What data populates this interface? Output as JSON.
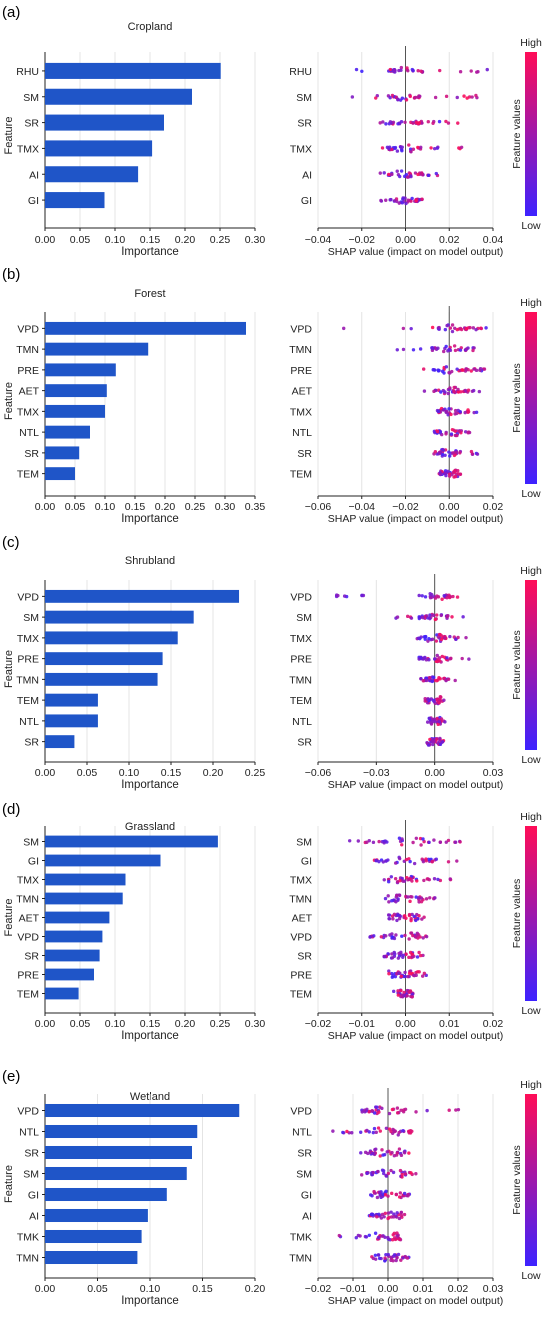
{
  "legend": {
    "high": "High",
    "low": "Low",
    "label": "Feature values"
  },
  "colors": {
    "bar": "#1f55c8",
    "high": "#ff0d57",
    "low": "#3d22ff",
    "grid": "#e4e4e4",
    "axis": "#222222"
  },
  "panels": [
    {
      "letter": "(a)",
      "title": "Cropland",
      "importance": {
        "type": "bar",
        "orientation": "horizontal",
        "ylabel": "Feature",
        "xlabel": "Importance",
        "categories": [
          "RHU",
          "SM",
          "SR",
          "TMX",
          "AI",
          "GI"
        ],
        "values": [
          0.251,
          0.21,
          0.17,
          0.153,
          0.133,
          0.085
        ],
        "xlim": [
          0,
          0.3
        ],
        "xticks": [
          "0.00",
          "0.05",
          "0.10",
          "0.15",
          "0.20",
          "0.25",
          "0.30"
        ]
      },
      "shap": {
        "type": "scatter",
        "xlabel": "SHAP value (impact on model output)",
        "features": [
          "RHU",
          "SM",
          "SR",
          "TMX",
          "AI",
          "GI"
        ],
        "xlim": [
          -0.04,
          0.04
        ],
        "xticks": [
          "−0.04",
          "−0.02",
          "0.00",
          "0.02",
          "0.04"
        ],
        "ranges": [
          [
            -0.028,
            0.039
          ],
          [
            -0.025,
            0.035
          ],
          [
            -0.012,
            0.028
          ],
          [
            -0.012,
            0.027
          ],
          [
            -0.012,
            0.015
          ],
          [
            -0.012,
            0.01
          ]
        ]
      }
    },
    {
      "letter": "(b)",
      "title": "Forest",
      "importance": {
        "type": "bar",
        "orientation": "horizontal",
        "ylabel": "Feature",
        "xlabel": "Importance",
        "categories": [
          "VPD",
          "TMN",
          "PRE",
          "AET",
          "TMX",
          "NTL",
          "SR",
          "TEM"
        ],
        "values": [
          0.335,
          0.172,
          0.118,
          0.103,
          0.1,
          0.075,
          0.057,
          0.05
        ],
        "xlim": [
          0,
          0.35
        ],
        "xticks": [
          "0.00",
          "0.05",
          "0.10",
          "0.15",
          "0.20",
          "0.25",
          "0.30",
          "0.35"
        ]
      },
      "shap": {
        "type": "scatter",
        "xlabel": "SHAP value (impact on model output)",
        "features": [
          "VPD",
          "TMN",
          "PRE",
          "AET",
          "TMX",
          "NTL",
          "SR",
          "TEM"
        ],
        "xlim": [
          -0.06,
          0.02
        ],
        "xticks": [
          "−0.06",
          "−0.04",
          "−0.02",
          "0.00",
          "0.02"
        ],
        "ranges": [
          [
            -0.057,
            0.018
          ],
          [
            -0.025,
            0.012
          ],
          [
            -0.012,
            0.017
          ],
          [
            -0.012,
            0.014
          ],
          [
            -0.007,
            0.014
          ],
          [
            -0.007,
            0.01
          ],
          [
            -0.007,
            0.014
          ],
          [
            -0.005,
            0.006
          ]
        ]
      }
    },
    {
      "letter": "(c)",
      "title": "Shrubland",
      "importance": {
        "type": "bar",
        "orientation": "horizontal",
        "ylabel": "Feature",
        "xlabel": "Importance",
        "categories": [
          "VPD",
          "SM",
          "TMX",
          "PRE",
          "TMN",
          "TEM",
          "NTL",
          "SR"
        ],
        "values": [
          0.231,
          0.177,
          0.158,
          0.14,
          0.134,
          0.063,
          0.063,
          0.035
        ],
        "xlim": [
          0,
          0.25
        ],
        "xticks": [
          "0.00",
          "0.05",
          "0.10",
          "0.15",
          "0.20",
          "0.25"
        ]
      },
      "shap": {
        "type": "scatter",
        "xlabel": "SHAP value (impact on model output)",
        "features": [
          "VPD",
          "SM",
          "TMX",
          "PRE",
          "TMN",
          "TEM",
          "NTL",
          "SR"
        ],
        "xlim": [
          -0.06,
          0.03
        ],
        "xticks": [
          "−0.06",
          "−0.03",
          "0.00",
          "0.03"
        ],
        "ranges": [
          [
            -0.053,
            0.012
          ],
          [
            -0.02,
            0.018
          ],
          [
            -0.01,
            0.018
          ],
          [
            -0.008,
            0.019
          ],
          [
            -0.008,
            0.012
          ],
          [
            -0.005,
            0.005
          ],
          [
            -0.004,
            0.007
          ],
          [
            -0.004,
            0.006
          ]
        ]
      }
    },
    {
      "letter": "(d)",
      "title": "Grassland",
      "importance": {
        "type": "bar",
        "orientation": "horizontal",
        "ylabel": "Feature",
        "xlabel": "Importance",
        "categories": [
          "SM",
          "GI",
          "TMX",
          "TMN",
          "AET",
          "VPD",
          "SR",
          "PRE",
          "TEM"
        ],
        "values": [
          0.247,
          0.165,
          0.115,
          0.111,
          0.092,
          0.082,
          0.078,
          0.07,
          0.048
        ],
        "xlim": [
          0,
          0.3
        ],
        "xticks": [
          "0.00",
          "0.05",
          "0.10",
          "0.15",
          "0.20",
          "0.25",
          "0.30"
        ]
      },
      "shap": {
        "type": "scatter",
        "xlabel": "SHAP value (impact on model output)",
        "features": [
          "SM",
          "GI",
          "TMX",
          "TMN",
          "AET",
          "VPD",
          "SR",
          "PRE",
          "TEM"
        ],
        "xlim": [
          -0.02,
          0.02
        ],
        "xticks": [
          "−0.02",
          "−0.01",
          "0.00",
          "0.01",
          "0.02"
        ],
        "ranges": [
          [
            -0.013,
            0.013
          ],
          [
            -0.009,
            0.012
          ],
          [
            -0.005,
            0.011
          ],
          [
            -0.005,
            0.007
          ],
          [
            -0.004,
            0.005
          ],
          [
            -0.009,
            0.005
          ],
          [
            -0.005,
            0.004
          ],
          [
            -0.004,
            0.005
          ],
          [
            -0.003,
            0.002
          ]
        ]
      }
    },
    {
      "letter": "(e)",
      "title": "Wetland",
      "importance": {
        "type": "bar",
        "orientation": "horizontal",
        "ylabel": "Feature",
        "xlabel": "Importance",
        "categories": [
          "VPD",
          "NTL",
          "SR",
          "SM",
          "GI",
          "AI",
          "TMK",
          "TMN"
        ],
        "values": [
          0.185,
          0.145,
          0.14,
          0.135,
          0.116,
          0.098,
          0.092,
          0.088
        ],
        "xlim": [
          0,
          0.2
        ],
        "xticks": [
          "0.00",
          "0.05",
          "0.10",
          "0.15",
          "0.20"
        ]
      },
      "shap": {
        "type": "scatter",
        "xlabel": "SHAP value (impact on model output)",
        "features": [
          "VPD",
          "NTL",
          "SR",
          "SM",
          "GI",
          "AI",
          "TMK",
          "TMN"
        ],
        "xlim": [
          -0.02,
          0.03
        ],
        "xticks": [
          "−0.02",
          "−0.01",
          "0.00",
          "0.01",
          "0.02",
          "0.03"
        ],
        "ranges": [
          [
            -0.008,
            0.021
          ],
          [
            -0.017,
            0.008
          ],
          [
            -0.011,
            0.007
          ],
          [
            -0.01,
            0.008
          ],
          [
            -0.006,
            0.007
          ],
          [
            -0.007,
            0.006
          ],
          [
            -0.015,
            0.005
          ],
          [
            -0.006,
            0.006
          ]
        ]
      }
    }
  ],
  "chart_data": [
    {
      "type": "bar",
      "title": "Cropland",
      "xlabel": "Importance",
      "ylabel": "Feature",
      "categories": [
        "RHU",
        "SM",
        "SR",
        "TMX",
        "AI",
        "GI"
      ],
      "values": [
        0.251,
        0.21,
        0.17,
        0.153,
        0.133,
        0.085
      ],
      "xlim": [
        0,
        0.3
      ]
    },
    {
      "type": "bar",
      "title": "Forest",
      "xlabel": "Importance",
      "ylabel": "Feature",
      "categories": [
        "VPD",
        "TMN",
        "PRE",
        "AET",
        "TMX",
        "NTL",
        "SR",
        "TEM"
      ],
      "values": [
        0.335,
        0.172,
        0.118,
        0.103,
        0.1,
        0.075,
        0.057,
        0.05
      ],
      "xlim": [
        0,
        0.35
      ]
    },
    {
      "type": "bar",
      "title": "Shrubland",
      "xlabel": "Importance",
      "ylabel": "Feature",
      "categories": [
        "VPD",
        "SM",
        "TMX",
        "PRE",
        "TMN",
        "TEM",
        "NTL",
        "SR"
      ],
      "values": [
        0.231,
        0.177,
        0.158,
        0.14,
        0.134,
        0.063,
        0.063,
        0.035
      ],
      "xlim": [
        0,
        0.25
      ]
    },
    {
      "type": "bar",
      "title": "Grassland",
      "xlabel": "Importance",
      "ylabel": "Feature",
      "categories": [
        "SM",
        "GI",
        "TMX",
        "TMN",
        "AET",
        "VPD",
        "SR",
        "PRE",
        "TEM"
      ],
      "values": [
        0.247,
        0.165,
        0.115,
        0.111,
        0.092,
        0.082,
        0.078,
        0.07,
        0.048
      ],
      "xlim": [
        0,
        0.3
      ]
    },
    {
      "type": "bar",
      "title": "Wetland",
      "xlabel": "Importance",
      "ylabel": "Feature",
      "categories": [
        "VPD",
        "NTL",
        "SR",
        "SM",
        "GI",
        "AI",
        "TMK",
        "TMN"
      ],
      "values": [
        0.185,
        0.145,
        0.14,
        0.135,
        0.116,
        0.098,
        0.092,
        0.088
      ],
      "xlim": [
        0,
        0.2
      ]
    }
  ]
}
